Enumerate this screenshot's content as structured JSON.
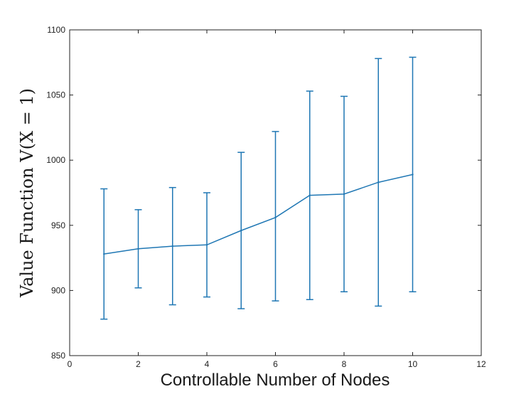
{
  "chart_data": {
    "type": "line",
    "xlabel": "Controllable Number of Nodes",
    "ylabel": "Value Function V(X = 1)",
    "xlim": [
      0,
      12
    ],
    "ylim": [
      850,
      1100
    ],
    "xticks": [
      0,
      2,
      4,
      6,
      8,
      10,
      12
    ],
    "yticks": [
      850,
      900,
      950,
      1000,
      1050,
      1100
    ],
    "xtick_labels": [
      "0",
      "2",
      "4",
      "6",
      "8",
      "10",
      "12"
    ],
    "ytick_labels": [
      "850",
      "900",
      "950",
      "1000",
      "1050",
      "1100"
    ],
    "grid": false,
    "line_color": "#1f77b4",
    "series": [
      {
        "x": [
          1,
          2,
          3,
          4,
          5,
          6,
          7,
          8,
          9,
          10
        ],
        "values": [
          928,
          932,
          934,
          935,
          946,
          956,
          973,
          974,
          983,
          989
        ],
        "error_low": [
          878,
          902,
          889,
          895,
          886,
          892,
          893,
          899,
          888,
          899
        ],
        "error_high": [
          978,
          962,
          979,
          975,
          1006,
          1022,
          1053,
          1049,
          1078,
          1079
        ]
      }
    ]
  }
}
